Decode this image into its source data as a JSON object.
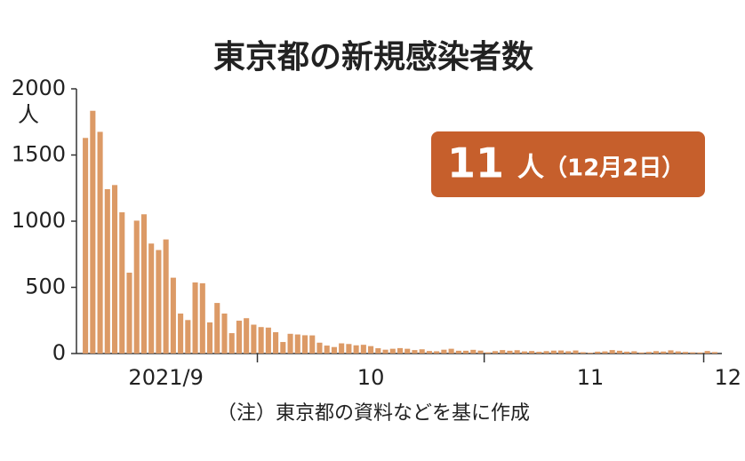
{
  "chart_data": {
    "type": "bar",
    "title": "東京都の新規感染者数",
    "y_unit": "人",
    "highlight": {
      "value": "11",
      "unit": "人",
      "date": "（12月2日）"
    },
    "note": "（注）東京都の資料などを基に作成",
    "color": "#dc9a66",
    "categories": [
      null,
      null,
      null,
      null,
      null,
      null,
      null,
      null,
      null,
      null,
      null,
      "2021/9",
      null,
      null,
      null,
      null,
      null,
      null,
      null,
      null,
      null,
      null,
      null,
      null,
      null,
      null,
      null,
      null,
      null,
      null,
      null,
      null,
      null,
      null,
      null,
      null,
      null,
      null,
      null,
      "10",
      null,
      null,
      null,
      null,
      null,
      null,
      null,
      null,
      null,
      null,
      null,
      null,
      null,
      null,
      null,
      null,
      null,
      null,
      null,
      null,
      null,
      null,
      null,
      null,
      null,
      null,
      null,
      null,
      null,
      "11",
      null,
      null,
      null,
      null,
      null,
      null,
      null,
      null,
      null,
      null,
      null,
      null,
      null,
      null,
      null,
      null,
      "12"
    ],
    "values": [
      1629,
      1834,
      1675,
      1242,
      1273,
      1067,
      611,
      1004,
      1052,
      831,
      782,
      862,
      573,
      302,
      253,
      537,
      531,
      235,
      382,
      302,
      154,
      248,
      267,
      218,
      200,
      196,
      161,
      87,
      149,
      144,
      138,
      137,
      82,
      60,
      49,
      77,
      72,
      62,
      66,
      56,
      40,
      29,
      36,
      41,
      36,
      26,
      32,
      19,
      17,
      29,
      36,
      21,
      21,
      28,
      22,
      9,
      18,
      26,
      21,
      25,
      16,
      19,
      13,
      18,
      22,
      23,
      17,
      23,
      10,
      6,
      14,
      16,
      26,
      21,
      14,
      17,
      8,
      12,
      18,
      15,
      24,
      16,
      12,
      9,
      8,
      19,
      11
    ],
    "ylim": [
      0,
      2000
    ],
    "yticks": [
      0,
      500,
      1000,
      1500,
      2000
    ]
  }
}
